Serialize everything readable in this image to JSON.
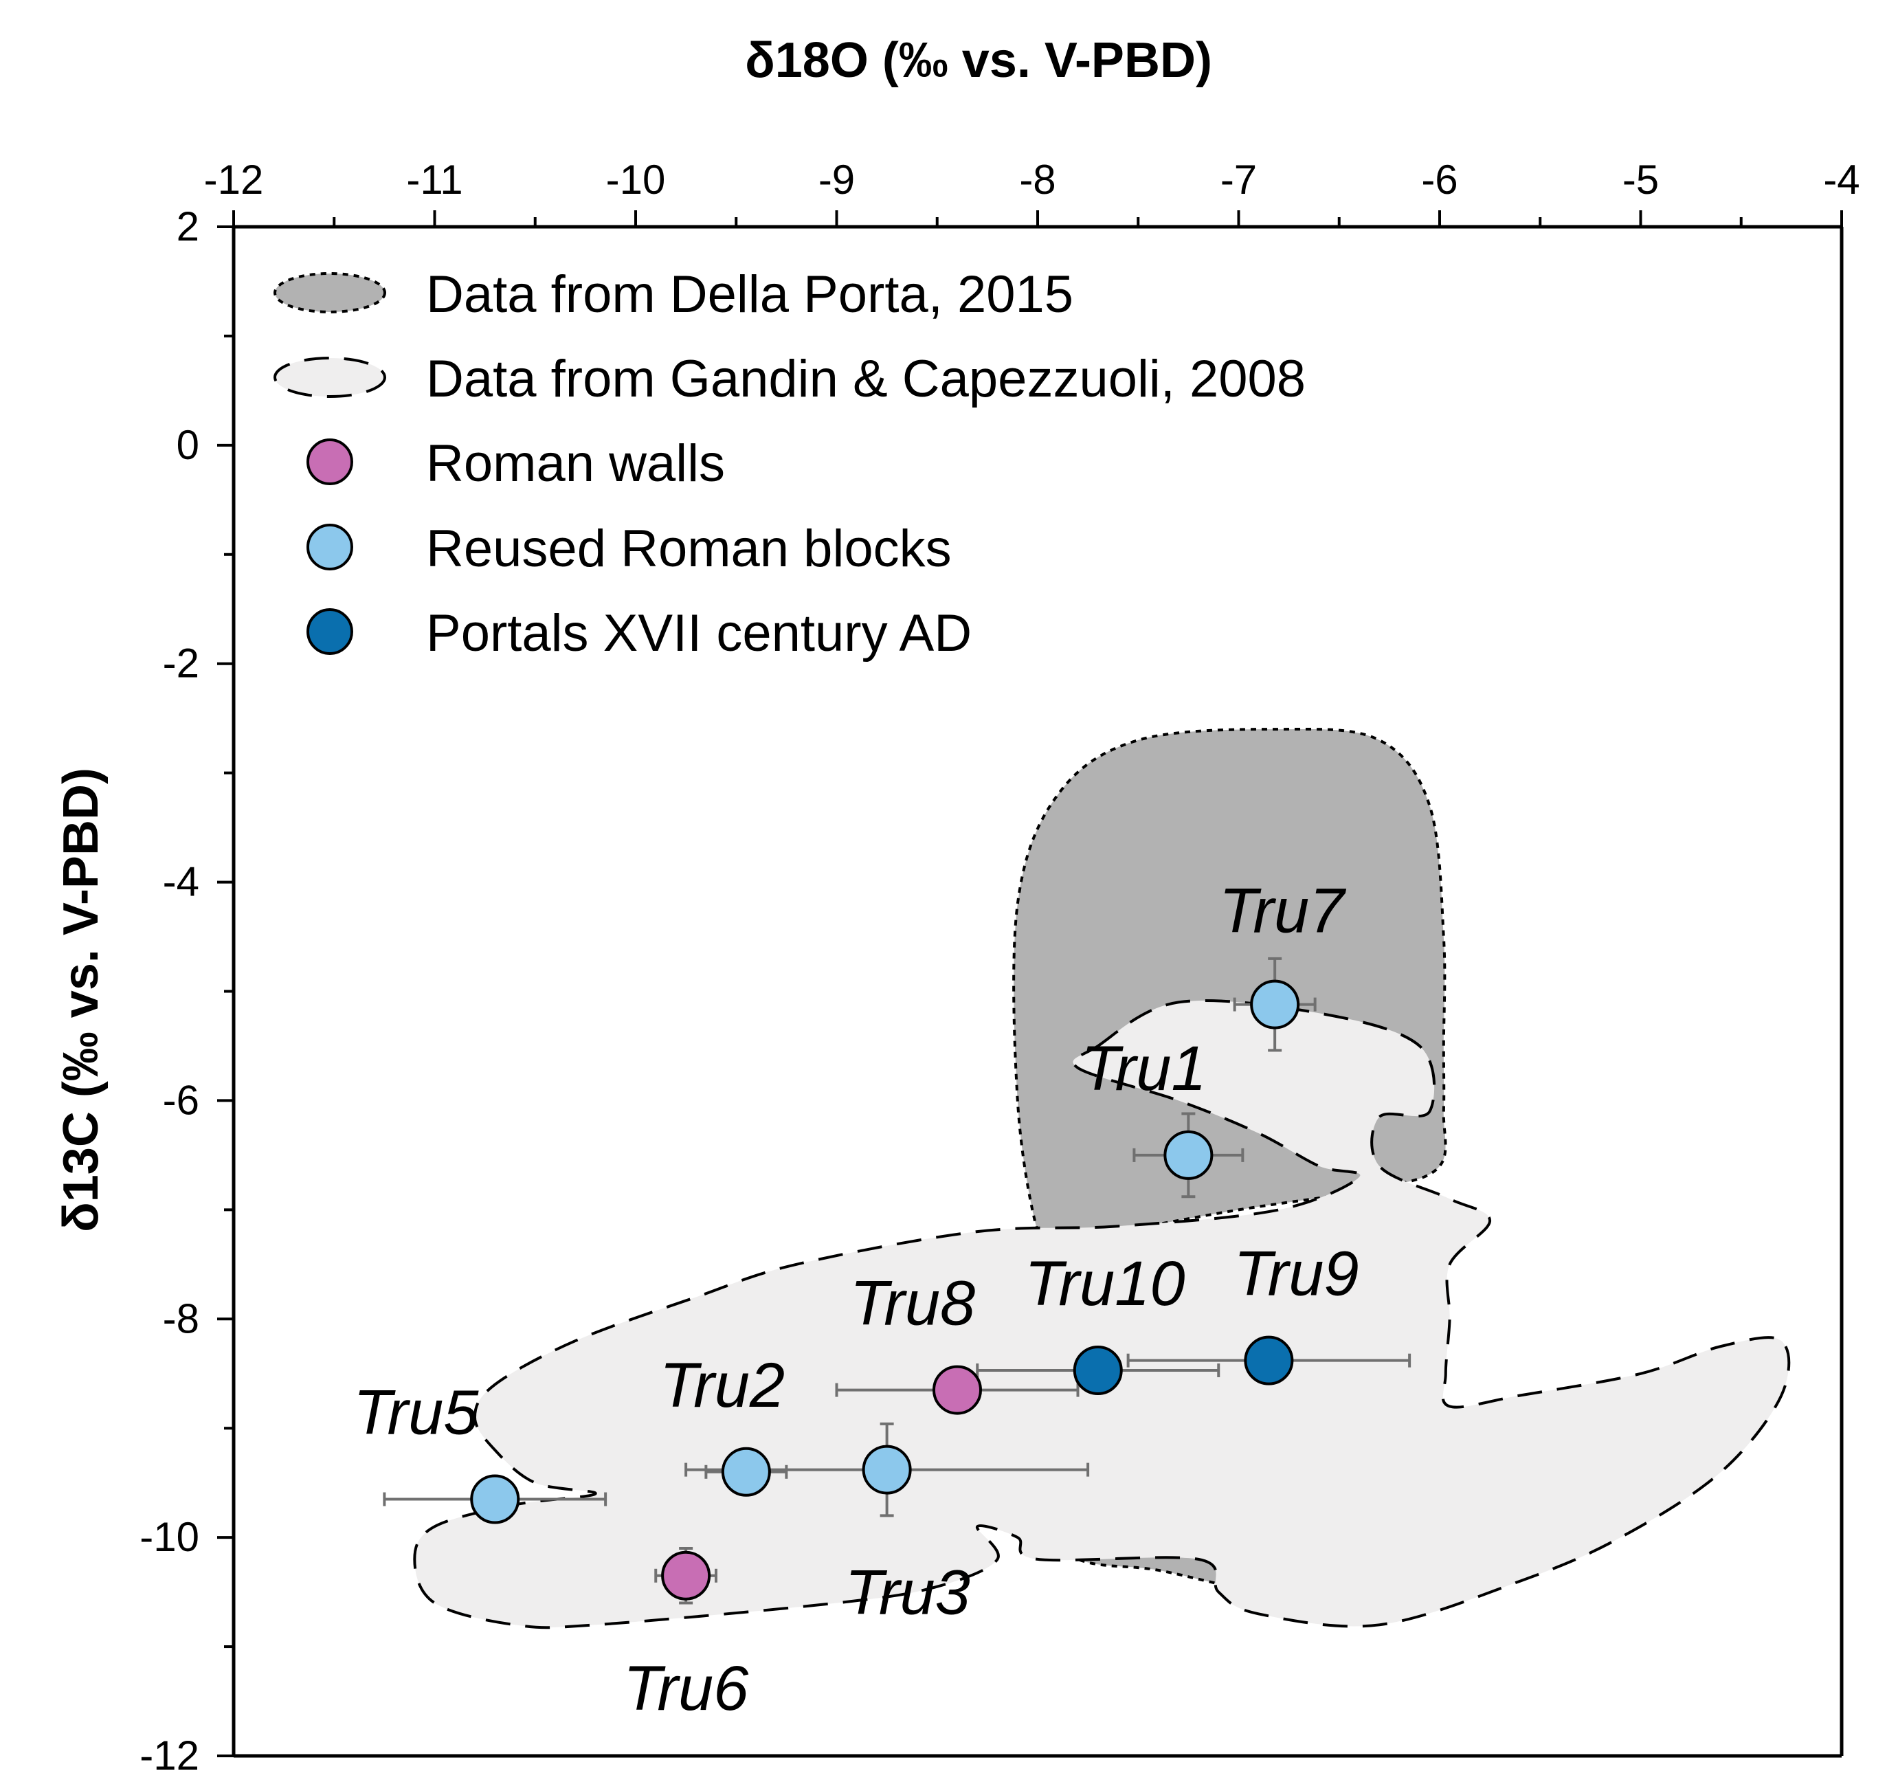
{
  "chart_data": {
    "type": "scatter",
    "xlabel": "δ18O  (‰ vs. V-PBD)",
    "ylabel": "δ13C  (‰ vs. V-PBD)",
    "xlim": [
      -12,
      -4
    ],
    "ylim": [
      -12,
      2
    ],
    "x_ticks": [
      "-12",
      "-11",
      "-10",
      "-9",
      "-8",
      "-7",
      "-6",
      "-5",
      "-4"
    ],
    "y_ticks": [
      "2",
      "0",
      "-2",
      "-4",
      "-6",
      "-8",
      "-10",
      "-12"
    ],
    "grid": false,
    "legend_position": "top-left",
    "legend": [
      {
        "key": "della_porta",
        "label": "Data from Della Porta, 2015"
      },
      {
        "key": "gandin",
        "label": "Data from Gandin & Capezzuoli, 2008"
      },
      {
        "key": "roman_walls",
        "label": "Roman walls"
      },
      {
        "key": "reused",
        "label": "Reused Roman blocks"
      },
      {
        "key": "portals",
        "label": "Portals XVII century AD"
      }
    ],
    "colors": {
      "della_porta": "#b2b2b2",
      "gandin": "#efeeee",
      "roman_walls": "#c86eb4",
      "reused": "#8cc8ec",
      "portals": "#0a6fae",
      "error_bar": "#707070"
    },
    "regions": [
      {
        "name": "Data from Della Porta, 2015",
        "points": [
          [
            -8.0,
            -7.2
          ],
          [
            -8.1,
            -6.0
          ],
          [
            -8.1,
            -4.2
          ],
          [
            -7.9,
            -3.2
          ],
          [
            -7.5,
            -2.7
          ],
          [
            -6.8,
            -2.6
          ],
          [
            -6.3,
            -2.7
          ],
          [
            -6.05,
            -3.3
          ],
          [
            -5.98,
            -4.5
          ],
          [
            -5.98,
            -5.5
          ],
          [
            -5.98,
            -6.1
          ],
          [
            -6.0,
            -6.6
          ],
          [
            -6.3,
            -6.8
          ],
          [
            -7.0,
            -7.0
          ],
          [
            -7.6,
            -7.2
          ],
          [
            -7.9,
            -7.3
          ]
        ]
      },
      {
        "name": "Della Porta lower lobe",
        "points": [
          [
            -8.1,
            -9.8
          ],
          [
            -7.8,
            -10.2
          ],
          [
            -7.4,
            -10.3
          ],
          [
            -6.9,
            -10.5
          ],
          [
            -6.6,
            -10.5
          ],
          [
            -6.5,
            -10.2
          ],
          [
            -6.8,
            -9.7
          ],
          [
            -7.3,
            -9.5
          ],
          [
            -8.0,
            -9.5
          ]
        ]
      },
      {
        "name": "Data from Gandin & Capezzuoli, 2008",
        "points": [
          [
            -7.7,
            -5.5
          ],
          [
            -7.3,
            -5.1
          ],
          [
            -6.6,
            -5.2
          ],
          [
            -6.1,
            -5.5
          ],
          [
            -6.05,
            -6.1
          ],
          [
            -6.3,
            -6.15
          ],
          [
            -6.3,
            -6.6
          ],
          [
            -5.95,
            -6.9
          ],
          [
            -5.75,
            -7.1
          ],
          [
            -5.95,
            -7.5
          ],
          [
            -5.95,
            -8.0
          ],
          [
            -5.97,
            -8.5
          ],
          [
            -5.95,
            -8.8
          ],
          [
            -5.6,
            -8.7
          ],
          [
            -5.0,
            -8.5
          ],
          [
            -4.6,
            -8.25
          ],
          [
            -4.3,
            -8.2
          ],
          [
            -4.3,
            -8.7
          ],
          [
            -4.6,
            -9.4
          ],
          [
            -5.1,
            -10.0
          ],
          [
            -5.6,
            -10.4
          ],
          [
            -6.3,
            -10.8
          ],
          [
            -6.9,
            -10.7
          ],
          [
            -7.1,
            -10.5
          ],
          [
            -7.2,
            -10.2
          ],
          [
            -8.0,
            -10.2
          ],
          [
            -8.1,
            -10.0
          ],
          [
            -8.3,
            -9.9
          ],
          [
            -8.2,
            -10.2
          ],
          [
            -8.5,
            -10.45
          ],
          [
            -9.0,
            -10.6
          ],
          [
            -10.2,
            -10.8
          ],
          [
            -10.6,
            -10.8
          ],
          [
            -11.0,
            -10.6
          ],
          [
            -11.1,
            -10.2
          ],
          [
            -11.0,
            -9.9
          ],
          [
            -10.6,
            -9.7
          ],
          [
            -10.2,
            -9.6
          ],
          [
            -10.5,
            -9.5
          ],
          [
            -10.7,
            -9.2
          ],
          [
            -10.8,
            -8.9
          ],
          [
            -10.7,
            -8.6
          ],
          [
            -10.3,
            -8.2
          ],
          [
            -9.7,
            -7.8
          ],
          [
            -9.2,
            -7.5
          ],
          [
            -8.3,
            -7.2
          ],
          [
            -7.6,
            -7.15
          ],
          [
            -6.8,
            -7.0
          ],
          [
            -6.4,
            -6.7
          ],
          [
            -6.6,
            -6.6
          ],
          [
            -6.9,
            -6.3
          ],
          [
            -7.3,
            -6.0
          ],
          [
            -7.8,
            -5.7
          ]
        ]
      }
    ],
    "series": [
      {
        "name": "Roman walls",
        "key": "roman_walls",
        "points": [
          {
            "label": "Tru6",
            "x": -9.75,
            "y": -10.35,
            "xerr": 0.15,
            "yerr": 0.25
          },
          {
            "label": "Tru8",
            "x": -8.4,
            "y": -8.65,
            "xerr": 0.6,
            "yerr": 0.2
          }
        ]
      },
      {
        "name": "Reused Roman blocks",
        "key": "reused",
        "points": [
          {
            "label": "Tru7",
            "x": -6.82,
            "y": -5.12,
            "xerr": 0.2,
            "yerr": 0.42
          },
          {
            "label": "Tru1",
            "x": -7.25,
            "y": -6.5,
            "xerr": 0.27,
            "yerr": 0.38
          },
          {
            "label": "Tru5",
            "x": -10.7,
            "y": -9.65,
            "xerr": 0.55,
            "yerr": 0
          },
          {
            "label": "Tru2",
            "x": -9.45,
            "y": -9.4,
            "xerr": 0.2,
            "yerr": 0
          },
          {
            "label": "Tru3",
            "x": -8.75,
            "y": -9.38,
            "xerr": 1.0,
            "yerr": 0.42
          }
        ]
      },
      {
        "name": "Portals XVII century AD",
        "key": "portals",
        "points": [
          {
            "label": "Tru10",
            "x": -7.7,
            "y": -8.47,
            "xerr": 0.6,
            "yerr": 0
          },
          {
            "label": "Tru9",
            "x": -6.85,
            "y": -8.38,
            "xerr": 0.7,
            "yerr": 0
          }
        ]
      }
    ],
    "annotations": [
      "Tru7",
      "Tru1",
      "Tru10",
      "Tru9",
      "Tru8",
      "Tru2",
      "Tru5",
      "Tru3",
      "Tru6"
    ]
  }
}
